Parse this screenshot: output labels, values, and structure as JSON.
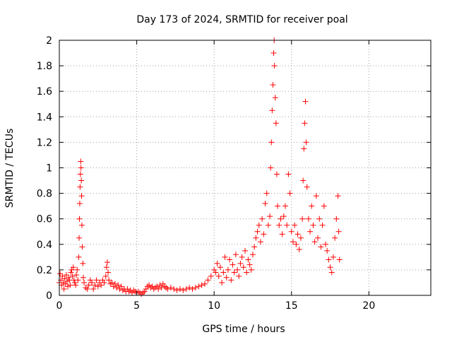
{
  "chart_data": {
    "type": "scatter",
    "title": "Day 173 of 2024, SRMTID for receiver poal",
    "xlabel": "GPS time / hours",
    "ylabel": "SRMTID / TECUs",
    "xlim": [
      0,
      24
    ],
    "ylim": [
      0,
      2
    ],
    "x_ticks": [
      0,
      5,
      10,
      15,
      20
    ],
    "y_ticks": [
      0,
      0.2,
      0.4,
      0.6,
      0.8,
      1,
      1.2,
      1.4,
      1.6,
      1.8,
      2
    ],
    "x_tick_labels": [
      "0",
      "5",
      "10",
      "15",
      "20"
    ],
    "y_tick_labels": [
      "0",
      "0.2",
      "0.4",
      "0.6",
      "0.8",
      "1",
      "1.2",
      "1.4",
      "1.6",
      "1.8",
      "2"
    ],
    "grid": true,
    "marker": "+",
    "colors": {
      "series": "#ff0000",
      "grid": "#a0a0a0",
      "axis": "#000000",
      "background": "#ffffff"
    },
    "series": [
      {
        "name": "SRMTID",
        "points": [
          [
            0.0,
            0.1
          ],
          [
            0.05,
            0.17
          ],
          [
            0.1,
            0.12
          ],
          [
            0.15,
            0.08
          ],
          [
            0.2,
            0.15
          ],
          [
            0.25,
            0.1
          ],
          [
            0.3,
            0.05
          ],
          [
            0.35,
            0.13
          ],
          [
            0.4,
            0.09
          ],
          [
            0.45,
            0.16
          ],
          [
            0.5,
            0.11
          ],
          [
            0.55,
            0.07
          ],
          [
            0.6,
            0.14
          ],
          [
            0.65,
            0.12
          ],
          [
            0.7,
            0.08
          ],
          [
            0.75,
            0.18
          ],
          [
            0.8,
            0.2
          ],
          [
            0.85,
            0.15
          ],
          [
            0.9,
            0.22
          ],
          [
            0.95,
            0.12
          ],
          [
            1.0,
            0.1
          ],
          [
            1.05,
            0.08
          ],
          [
            1.1,
            0.16
          ],
          [
            1.15,
            0.2
          ],
          [
            1.2,
            0.12
          ],
          [
            1.25,
            0.3
          ],
          [
            1.28,
            0.45
          ],
          [
            1.3,
            0.6
          ],
          [
            1.32,
            0.72
          ],
          [
            1.34,
            0.85
          ],
          [
            1.36,
            0.95
          ],
          [
            1.38,
            1.05
          ],
          [
            1.4,
            1.0
          ],
          [
            1.42,
            0.9
          ],
          [
            1.44,
            0.78
          ],
          [
            1.46,
            0.55
          ],
          [
            1.48,
            0.38
          ],
          [
            1.52,
            0.25
          ],
          [
            1.55,
            0.14
          ],
          [
            1.6,
            0.1
          ],
          [
            1.7,
            0.06
          ],
          [
            1.8,
            0.05
          ],
          [
            1.9,
            0.08
          ],
          [
            2.0,
            0.12
          ],
          [
            2.1,
            0.1
          ],
          [
            2.2,
            0.05
          ],
          [
            2.3,
            0.08
          ],
          [
            2.4,
            0.12
          ],
          [
            2.5,
            0.07
          ],
          [
            2.6,
            0.1
          ],
          [
            2.7,
            0.08
          ],
          [
            2.8,
            0.12
          ],
          [
            2.9,
            0.1
          ],
          [
            3.0,
            0.15
          ],
          [
            3.05,
            0.22
          ],
          [
            3.1,
            0.26
          ],
          [
            3.15,
            0.18
          ],
          [
            3.2,
            0.12
          ],
          [
            3.3,
            0.09
          ],
          [
            3.4,
            0.1
          ],
          [
            3.5,
            0.07
          ],
          [
            3.6,
            0.09
          ],
          [
            3.7,
            0.06
          ],
          [
            3.8,
            0.08
          ],
          [
            3.9,
            0.05
          ],
          [
            4.0,
            0.07
          ],
          [
            4.1,
            0.04
          ],
          [
            4.2,
            0.05
          ],
          [
            4.3,
            0.03
          ],
          [
            4.4,
            0.05
          ],
          [
            4.5,
            0.03
          ],
          [
            4.6,
            0.04
          ],
          [
            4.7,
            0.02
          ],
          [
            4.8,
            0.04
          ],
          [
            4.9,
            0.03
          ],
          [
            5.0,
            0.02
          ],
          [
            5.1,
            0.03
          ],
          [
            5.2,
            0.02
          ],
          [
            5.3,
            0.01
          ],
          [
            5.4,
            0.02
          ],
          [
            5.5,
            0.03
          ],
          [
            5.6,
            0.05
          ],
          [
            5.7,
            0.07
          ],
          [
            5.8,
            0.08
          ],
          [
            5.9,
            0.06
          ],
          [
            6.0,
            0.07
          ],
          [
            6.1,
            0.05
          ],
          [
            6.2,
            0.06
          ],
          [
            6.3,
            0.07
          ],
          [
            6.4,
            0.05
          ],
          [
            6.5,
            0.08
          ],
          [
            6.6,
            0.06
          ],
          [
            6.7,
            0.09
          ],
          [
            6.8,
            0.07
          ],
          [
            6.9,
            0.06
          ],
          [
            7.0,
            0.05
          ],
          [
            7.2,
            0.06
          ],
          [
            7.4,
            0.05
          ],
          [
            7.6,
            0.04
          ],
          [
            7.8,
            0.05
          ],
          [
            8.0,
            0.04
          ],
          [
            8.2,
            0.05
          ],
          [
            8.4,
            0.06
          ],
          [
            8.6,
            0.05
          ],
          [
            8.8,
            0.06
          ],
          [
            9.0,
            0.07
          ],
          [
            9.2,
            0.08
          ],
          [
            9.4,
            0.09
          ],
          [
            9.6,
            0.12
          ],
          [
            9.8,
            0.15
          ],
          [
            10.0,
            0.2
          ],
          [
            10.1,
            0.18
          ],
          [
            10.2,
            0.25
          ],
          [
            10.3,
            0.15
          ],
          [
            10.4,
            0.22
          ],
          [
            10.5,
            0.1
          ],
          [
            10.6,
            0.18
          ],
          [
            10.7,
            0.3
          ],
          [
            10.8,
            0.14
          ],
          [
            10.9,
            0.2
          ],
          [
            11.0,
            0.28
          ],
          [
            11.1,
            0.12
          ],
          [
            11.2,
            0.24
          ],
          [
            11.3,
            0.18
          ],
          [
            11.4,
            0.32
          ],
          [
            11.5,
            0.2
          ],
          [
            11.6,
            0.15
          ],
          [
            11.7,
            0.25
          ],
          [
            11.8,
            0.3
          ],
          [
            11.9,
            0.22
          ],
          [
            12.0,
            0.35
          ],
          [
            12.1,
            0.18
          ],
          [
            12.2,
            0.28
          ],
          [
            12.3,
            0.24
          ],
          [
            12.4,
            0.2
          ],
          [
            12.5,
            0.32
          ],
          [
            12.6,
            0.38
          ],
          [
            12.7,
            0.45
          ],
          [
            12.8,
            0.5
          ],
          [
            12.9,
            0.55
          ],
          [
            13.0,
            0.42
          ],
          [
            13.1,
            0.6
          ],
          [
            13.2,
            0.48
          ],
          [
            13.3,
            0.72
          ],
          [
            13.4,
            0.8
          ],
          [
            13.5,
            0.55
          ],
          [
            13.6,
            0.62
          ],
          [
            13.65,
            1.0
          ],
          [
            13.7,
            1.2
          ],
          [
            13.75,
            1.45
          ],
          [
            13.8,
            1.65
          ],
          [
            13.85,
            1.9
          ],
          [
            13.88,
            2.0
          ],
          [
            13.9,
            1.8
          ],
          [
            13.95,
            1.55
          ],
          [
            14.0,
            1.35
          ],
          [
            14.05,
            0.95
          ],
          [
            14.1,
            0.7
          ],
          [
            14.2,
            0.55
          ],
          [
            14.3,
            0.6
          ],
          [
            14.4,
            0.48
          ],
          [
            14.5,
            0.62
          ],
          [
            14.6,
            0.7
          ],
          [
            14.7,
            0.55
          ],
          [
            14.8,
            0.95
          ],
          [
            14.9,
            0.8
          ],
          [
            15.0,
            0.5
          ],
          [
            15.1,
            0.42
          ],
          [
            15.2,
            0.55
          ],
          [
            15.3,
            0.4
          ],
          [
            15.4,
            0.48
          ],
          [
            15.5,
            0.36
          ],
          [
            15.6,
            0.45
          ],
          [
            15.7,
            0.6
          ],
          [
            15.75,
            0.9
          ],
          [
            15.8,
            1.15
          ],
          [
            15.85,
            1.35
          ],
          [
            15.9,
            1.52
          ],
          [
            15.95,
            1.2
          ],
          [
            16.0,
            0.85
          ],
          [
            16.1,
            0.6
          ],
          [
            16.2,
            0.5
          ],
          [
            16.3,
            0.7
          ],
          [
            16.4,
            0.55
          ],
          [
            16.5,
            0.42
          ],
          [
            16.6,
            0.78
          ],
          [
            16.7,
            0.45
          ],
          [
            16.8,
            0.6
          ],
          [
            16.9,
            0.38
          ],
          [
            17.0,
            0.55
          ],
          [
            17.1,
            0.7
          ],
          [
            17.2,
            0.4
          ],
          [
            17.3,
            0.35
          ],
          [
            17.4,
            0.28
          ],
          [
            17.5,
            0.22
          ],
          [
            17.6,
            0.18
          ],
          [
            17.7,
            0.3
          ],
          [
            17.8,
            0.45
          ],
          [
            17.9,
            0.6
          ],
          [
            18.0,
            0.78
          ],
          [
            18.05,
            0.5
          ],
          [
            18.1,
            0.28
          ]
        ]
      }
    ]
  }
}
